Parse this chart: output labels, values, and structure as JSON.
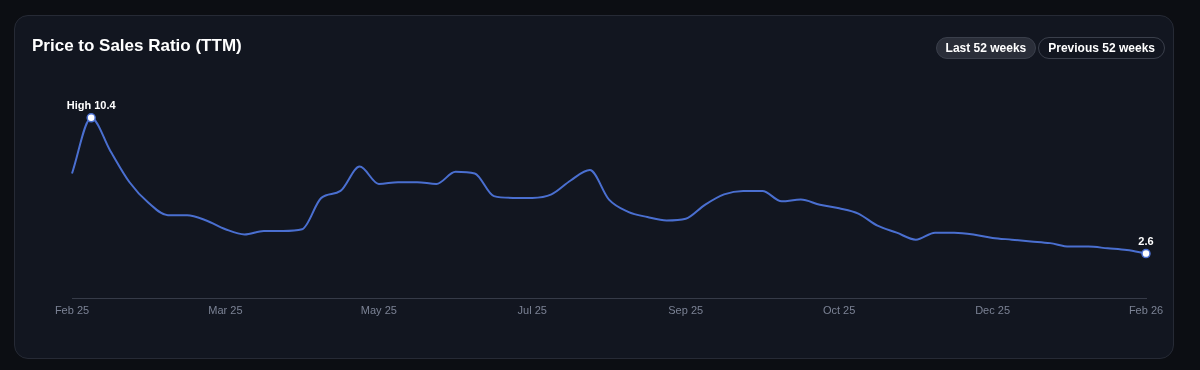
{
  "chart_data": {
    "type": "line",
    "title": "Price to Sales Ratio (TTM)",
    "categories": [
      "Feb 25",
      null,
      null,
      null,
      null,
      null,
      null,
      null,
      "Mar 25",
      null,
      null,
      null,
      null,
      null,
      null,
      null,
      "May 25",
      null,
      null,
      null,
      null,
      null,
      null,
      null,
      "Jul 25",
      null,
      null,
      null,
      null,
      null,
      null,
      null,
      "Sep 25",
      null,
      null,
      null,
      null,
      null,
      null,
      null,
      "Oct 25",
      null,
      null,
      null,
      null,
      null,
      null,
      null,
      "Dec 25",
      null,
      null,
      null,
      null,
      null,
      null,
      null,
      "Feb 26"
    ],
    "series": [
      {
        "color": "#4a6fd0",
        "values": [
          7.2,
          10.4,
          8.5,
          6.7,
          5.5,
          4.8,
          4.8,
          4.5,
          4.0,
          3.7,
          3.9,
          3.9,
          4.0,
          5.8,
          6.2,
          7.6,
          6.6,
          6.7,
          6.7,
          6.6,
          7.3,
          7.2,
          5.9,
          5.8,
          5.8,
          6.0,
          6.8,
          7.4,
          5.7,
          5.0,
          4.7,
          4.5,
          4.6,
          5.4,
          6.0,
          6.2,
          6.2,
          5.6,
          5.7,
          5.4,
          5.2,
          4.9,
          4.2,
          3.8,
          3.4,
          3.8,
          3.8,
          3.7,
          3.5,
          3.4,
          3.3,
          3.2,
          3.0,
          3.0,
          2.9,
          2.8,
          2.6
        ],
        "value_labels": [
          null,
          "High 10.4",
          null,
          null,
          null,
          null,
          null,
          null,
          null,
          null,
          null,
          null,
          null,
          null,
          null,
          null,
          null,
          null,
          null,
          null,
          null,
          null,
          null,
          null,
          null,
          null,
          null,
          null,
          null,
          null,
          null,
          null,
          null,
          null,
          null,
          null,
          null,
          null,
          null,
          null,
          null,
          null,
          null,
          null,
          null,
          null,
          null,
          null,
          null,
          null,
          null,
          null,
          null,
          null,
          null,
          null,
          "2.6"
        ]
      }
    ],
    "tick_labels": "x",
    "grid": false,
    "legend": false,
    "marker": "none",
    "line_style": "solid",
    "annotations": [
      "Last 52 weeks",
      "Previous 52 weeks"
    ]
  }
}
